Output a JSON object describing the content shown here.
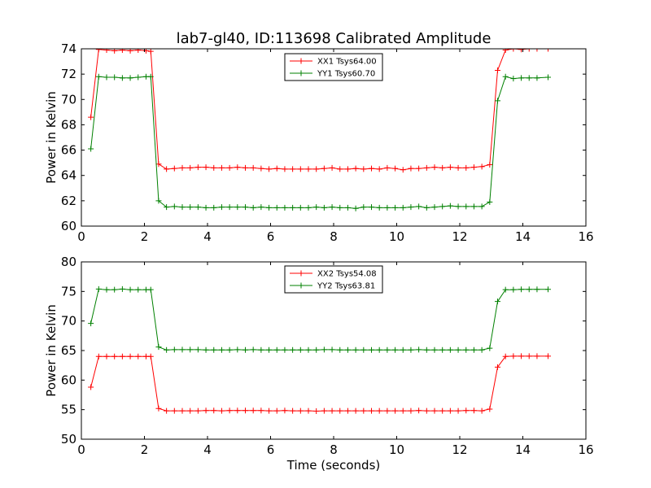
{
  "title": "lab7-gl40, ID:113698 Calibrated Amplitude",
  "xlabel": "Time (seconds)",
  "colors": {
    "red": "#ff0000",
    "green": "#008000"
  },
  "chart_data": [
    {
      "type": "line",
      "ylabel": "Power in Kelvin",
      "xlim": [
        0,
        16
      ],
      "ylim": [
        60,
        74
      ],
      "xticks": [
        "0",
        "2",
        "4",
        "6",
        "8",
        "10",
        "12",
        "14",
        "16"
      ],
      "yticks": [
        "60",
        "62",
        "64",
        "66",
        "68",
        "70",
        "72",
        "74"
      ],
      "legend_position": "top-center",
      "x": [
        0.3,
        0.55,
        0.8,
        1.05,
        1.3,
        1.55,
        1.8,
        2.05,
        2.2,
        2.45,
        2.7,
        2.95,
        3.2,
        3.45,
        3.7,
        3.95,
        4.2,
        4.45,
        4.7,
        4.95,
        5.2,
        5.45,
        5.7,
        5.95,
        6.2,
        6.45,
        6.7,
        6.95,
        7.2,
        7.45,
        7.7,
        7.95,
        8.2,
        8.45,
        8.7,
        8.95,
        9.2,
        9.45,
        9.7,
        9.95,
        10.2,
        10.45,
        10.7,
        10.95,
        11.2,
        11.45,
        11.7,
        11.95,
        12.2,
        12.45,
        12.7,
        12.95,
        13.2,
        13.45,
        13.7,
        13.95,
        14.2,
        14.45,
        14.8
      ],
      "series": [
        {
          "name": "XX1 Tsys64.00",
          "color": "#ff0000",
          "values": [
            68.6,
            73.95,
            73.9,
            73.85,
            73.9,
            73.85,
            73.9,
            73.85,
            73.8,
            64.9,
            64.5,
            64.55,
            64.6,
            64.6,
            64.65,
            64.65,
            64.6,
            64.6,
            64.6,
            64.65,
            64.6,
            64.6,
            64.55,
            64.5,
            64.55,
            64.5,
            64.5,
            64.5,
            64.5,
            64.5,
            64.55,
            64.6,
            64.5,
            64.5,
            64.55,
            64.5,
            64.55,
            64.5,
            64.6,
            64.55,
            64.45,
            64.55,
            64.55,
            64.6,
            64.65,
            64.6,
            64.65,
            64.6,
            64.6,
            64.65,
            64.7,
            64.85,
            72.3,
            73.9,
            74.0,
            73.95,
            74.0,
            74.0,
            74.0
          ]
        },
        {
          "name": "YY1 Tsys60.70",
          "color": "#008000",
          "values": [
            66.1,
            71.8,
            71.75,
            71.75,
            71.7,
            71.7,
            71.75,
            71.8,
            71.8,
            62.0,
            61.5,
            61.55,
            61.5,
            61.5,
            61.5,
            61.45,
            61.45,
            61.5,
            61.5,
            61.5,
            61.5,
            61.45,
            61.5,
            61.45,
            61.45,
            61.45,
            61.45,
            61.45,
            61.45,
            61.5,
            61.45,
            61.5,
            61.45,
            61.45,
            61.4,
            61.5,
            61.5,
            61.45,
            61.45,
            61.45,
            61.45,
            61.5,
            61.55,
            61.45,
            61.5,
            61.55,
            61.6,
            61.55,
            61.55,
            61.55,
            61.55,
            61.9,
            69.9,
            71.8,
            71.65,
            71.7,
            71.7,
            71.7,
            71.75
          ]
        }
      ]
    },
    {
      "type": "line",
      "ylabel": "Power in Kelvin",
      "xlim": [
        0,
        16
      ],
      "ylim": [
        50,
        80
      ],
      "xticks": [
        "0",
        "2",
        "4",
        "6",
        "8",
        "10",
        "12",
        "14",
        "16"
      ],
      "yticks": [
        "50",
        "55",
        "60",
        "65",
        "70",
        "75",
        "80"
      ],
      "legend_position": "top-center",
      "x": [
        0.3,
        0.55,
        0.8,
        1.05,
        1.3,
        1.55,
        1.8,
        2.05,
        2.2,
        2.45,
        2.7,
        2.95,
        3.2,
        3.45,
        3.7,
        3.95,
        4.2,
        4.45,
        4.7,
        4.95,
        5.2,
        5.45,
        5.7,
        5.95,
        6.2,
        6.45,
        6.7,
        6.95,
        7.2,
        7.45,
        7.7,
        7.95,
        8.2,
        8.45,
        8.7,
        8.95,
        9.2,
        9.45,
        9.7,
        9.95,
        10.2,
        10.45,
        10.7,
        10.95,
        11.2,
        11.45,
        11.7,
        11.95,
        12.2,
        12.45,
        12.7,
        12.95,
        13.2,
        13.45,
        13.7,
        13.95,
        14.2,
        14.45,
        14.8
      ],
      "series": [
        {
          "name": "XX2 Tsys54.08",
          "color": "#ff0000",
          "values": [
            58.8,
            64.0,
            64.0,
            64.0,
            64.0,
            64.0,
            64.0,
            64.0,
            64.0,
            55.2,
            54.8,
            54.8,
            54.8,
            54.8,
            54.8,
            54.85,
            54.85,
            54.8,
            54.85,
            54.85,
            54.85,
            54.85,
            54.85,
            54.8,
            54.8,
            54.85,
            54.8,
            54.8,
            54.8,
            54.75,
            54.8,
            54.8,
            54.8,
            54.8,
            54.8,
            54.8,
            54.8,
            54.8,
            54.8,
            54.8,
            54.8,
            54.8,
            54.85,
            54.8,
            54.8,
            54.8,
            54.8,
            54.8,
            54.85,
            54.85,
            54.8,
            55.1,
            62.2,
            64.0,
            64.05,
            64.05,
            64.05,
            64.05,
            64.05
          ]
        },
        {
          "name": "YY2 Tsys63.81",
          "color": "#008000",
          "values": [
            69.6,
            75.4,
            75.3,
            75.3,
            75.4,
            75.3,
            75.3,
            75.3,
            75.3,
            65.6,
            65.1,
            65.15,
            65.15,
            65.15,
            65.15,
            65.1,
            65.1,
            65.1,
            65.1,
            65.15,
            65.1,
            65.15,
            65.1,
            65.1,
            65.1,
            65.1,
            65.1,
            65.1,
            65.1,
            65.1,
            65.15,
            65.15,
            65.1,
            65.1,
            65.1,
            65.1,
            65.1,
            65.1,
            65.1,
            65.1,
            65.1,
            65.1,
            65.15,
            65.1,
            65.1,
            65.1,
            65.1,
            65.1,
            65.1,
            65.1,
            65.1,
            65.4,
            73.3,
            75.3,
            75.3,
            75.35,
            75.35,
            75.35,
            75.35
          ]
        }
      ]
    }
  ]
}
